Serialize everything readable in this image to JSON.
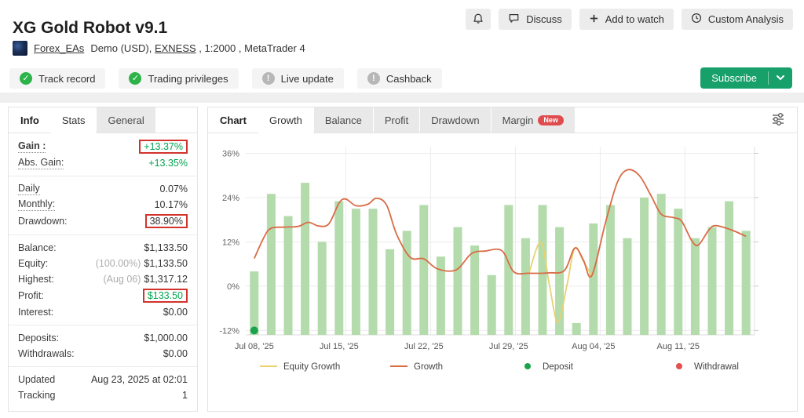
{
  "header": {
    "title": "XG Gold Robot v9.1",
    "actions": [
      {
        "icon": "bell",
        "label": ""
      },
      {
        "icon": "discuss",
        "label": "Discuss"
      },
      {
        "icon": "plus",
        "label": "Add to watch"
      },
      {
        "icon": "clock",
        "label": "Custom Analysis"
      }
    ],
    "account": {
      "owner": "Forex_EAs",
      "prefix": "Demo (USD), ",
      "broker": "EXNESS",
      "suffix": " , 1:2000 , MetaTrader 4"
    },
    "badges": [
      {
        "label": "Track record",
        "status": "ok"
      },
      {
        "label": "Trading privileges",
        "status": "ok"
      },
      {
        "label": "Live update",
        "status": "na"
      },
      {
        "label": "Cashback",
        "status": "na"
      }
    ],
    "subscribe_label": "Subscribe"
  },
  "stats_panel": {
    "title": "Info",
    "tabs": [
      {
        "label": "Stats",
        "active": true
      },
      {
        "label": "General",
        "active": false
      }
    ],
    "groups": [
      {
        "rows": [
          {
            "name": "gain",
            "label": "Gain :",
            "dotted": true,
            "value": "+13.37%",
            "green": true,
            "boxed": true
          },
          {
            "name": "abs-gain",
            "label": "Abs. Gain:",
            "dotted": true,
            "value": "+13.35%",
            "green": true
          }
        ]
      },
      {
        "rows": [
          {
            "name": "daily",
            "label": "Daily",
            "dotted": true,
            "value": "0.07%"
          },
          {
            "name": "monthly",
            "label": "Monthly:",
            "dotted": true,
            "value": "10.17%"
          },
          {
            "name": "drawdown",
            "label": "Drawdown:",
            "value": "38.90%",
            "boxed": true
          }
        ]
      },
      {
        "rows": [
          {
            "name": "balance",
            "label": "Balance:",
            "value": "$1,133.50"
          },
          {
            "name": "equity",
            "label": "Equity:",
            "muted": "(100.00%)",
            "value": "$1,133.50"
          },
          {
            "name": "highest",
            "label": "Highest:",
            "muted": "(Aug 06)",
            "value": "$1,317.12"
          },
          {
            "name": "profit",
            "label": "Profit:",
            "value": "$133.50",
            "green": true,
            "boxed": true
          },
          {
            "name": "interest",
            "label": "Interest:",
            "value": "$0.00"
          }
        ]
      },
      {
        "rows": [
          {
            "name": "deposits",
            "label": "Deposits:",
            "value": "$1,000.00"
          },
          {
            "name": "withdrawals",
            "label": "Withdrawals:",
            "value": "$0.00"
          }
        ]
      },
      {
        "rows": [
          {
            "name": "updated",
            "label": "Updated",
            "value": "Aug 23, 2025 at 02:01"
          },
          {
            "name": "tracking",
            "label": "Tracking",
            "value": "1"
          }
        ]
      }
    ]
  },
  "chart_panel": {
    "title": "Chart",
    "tabs": [
      {
        "label": "Growth",
        "active": true
      },
      {
        "label": "Balance",
        "active": false
      },
      {
        "label": "Profit",
        "active": false
      },
      {
        "label": "Drawdown",
        "active": false
      },
      {
        "label": "Margin",
        "active": false,
        "badge": "New"
      }
    ]
  },
  "chart_data": {
    "type": "bar+line",
    "title": "Growth",
    "y_axis": {
      "unit": "%",
      "ticks": [
        36,
        24,
        12,
        0,
        -12
      ],
      "min": -13.2,
      "max": 37.8
    },
    "x_axis": {
      "labels": [
        {
          "at": 0,
          "text": "Jul 08, '25"
        },
        {
          "at": 5,
          "text": "Jul 15, '25"
        },
        {
          "at": 10,
          "text": "Jul 22, '25"
        },
        {
          "at": 15,
          "text": "Jul 29, '25"
        },
        {
          "at": 20,
          "text": "Aug 04, '25"
        },
        {
          "at": 25,
          "text": "Aug 11, '25"
        }
      ]
    },
    "bars": {
      "color": "#b4dbac",
      "values": [
        4,
        25,
        19,
        28,
        12,
        23,
        21,
        21,
        10,
        15,
        22,
        8,
        16,
        11,
        3,
        22,
        13,
        22,
        16,
        -10,
        17,
        22,
        13,
        24,
        25,
        21,
        13,
        16,
        23,
        15
      ]
    },
    "series": [
      {
        "name": "Equity Growth",
        "color": "#e8d272",
        "points": [
          [
            16.2,
            3.5
          ],
          [
            16.9,
            11.9
          ],
          [
            17.4,
            0.5
          ],
          [
            17.9,
            -9.8
          ],
          [
            18.45,
            0.5
          ],
          [
            18.9,
            10.3
          ],
          [
            19.4,
            6.8
          ],
          [
            19.9,
            2.8
          ]
        ]
      },
      {
        "name": "Growth",
        "color": "#d96b45",
        "points": [
          [
            0,
            7.5
          ],
          [
            0.6,
            13.5
          ],
          [
            1,
            15.7
          ],
          [
            1.8,
            16
          ],
          [
            2.6,
            16.2
          ],
          [
            3.2,
            17.3
          ],
          [
            3.8,
            16.3
          ],
          [
            4.4,
            16.9
          ],
          [
            5,
            22.5
          ],
          [
            5.4,
            23.6
          ],
          [
            6,
            21.8
          ],
          [
            6.7,
            22.2
          ],
          [
            7.2,
            23.8
          ],
          [
            7.8,
            22
          ],
          [
            8.4,
            14
          ],
          [
            9.2,
            7.8
          ],
          [
            10,
            7.4
          ],
          [
            10.8,
            4.7
          ],
          [
            11.9,
            4.4
          ],
          [
            12.8,
            8.8
          ],
          [
            13.6,
            9.5
          ],
          [
            14.6,
            9.6
          ],
          [
            15.3,
            3.9
          ],
          [
            16.2,
            3.5
          ],
          [
            17.4,
            3.6
          ],
          [
            18.3,
            4.3
          ],
          [
            18.9,
            10.3
          ],
          [
            19.4,
            7.2
          ],
          [
            19.9,
            2.8
          ],
          [
            20.7,
            17
          ],
          [
            21.4,
            28
          ],
          [
            22,
            31.5
          ],
          [
            22.7,
            30
          ],
          [
            23.4,
            24.5
          ],
          [
            24,
            19.5
          ],
          [
            24.7,
            18.6
          ],
          [
            25.2,
            17.6
          ],
          [
            25.8,
            12.3
          ],
          [
            26.2,
            11.2
          ],
          [
            26.8,
            15.2
          ],
          [
            27.2,
            16.4
          ],
          [
            28.1,
            15.3
          ],
          [
            29,
            13.5
          ]
        ]
      }
    ],
    "markers": [
      {
        "name": "Deposit",
        "x": 0,
        "y": -12,
        "color": "#1aa34a"
      }
    ],
    "legend": [
      {
        "label": "Equity Growth",
        "swatch": "line",
        "color": "#e8d272"
      },
      {
        "label": "Growth",
        "swatch": "line",
        "color": "#d96b45"
      },
      {
        "label": "Deposit",
        "swatch": "dot",
        "color": "#1aa34a"
      },
      {
        "label": "Withdrawal",
        "swatch": "dot",
        "color": "#e25050"
      }
    ],
    "grid": {
      "vlines_at": [
        5.4,
        10.4,
        15.4,
        20.4,
        25.4
      ]
    }
  }
}
